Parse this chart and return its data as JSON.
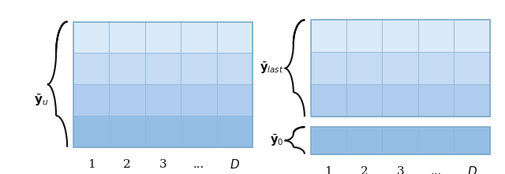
{
  "fig_width": 6.4,
  "fig_height": 2.21,
  "bg_color": "#ffffff",
  "left_grid": {
    "rows": 4,
    "cols": 5,
    "row_colors": [
      "#daeaf8",
      "#c4dbf3",
      "#aecced",
      "#94bde6"
    ],
    "grid_line_color": "#90b8d8",
    "border_color": "#7aaac8"
  },
  "right_top_grid": {
    "rows": 3,
    "cols": 5,
    "row_colors": [
      "#daeaf8",
      "#c4dbf3",
      "#aecced"
    ],
    "grid_line_color": "#90b8d8",
    "border_color": "#7aaac8"
  },
  "right_bottom_grid": {
    "rows": 1,
    "cols": 5,
    "row_colors": [
      "#94bde6"
    ],
    "grid_line_color": "#90b8d8",
    "border_color": "#7aaac8"
  },
  "x_labels": [
    "1",
    "2",
    "3",
    "...",
    "D"
  ],
  "brace_color": "#111111"
}
